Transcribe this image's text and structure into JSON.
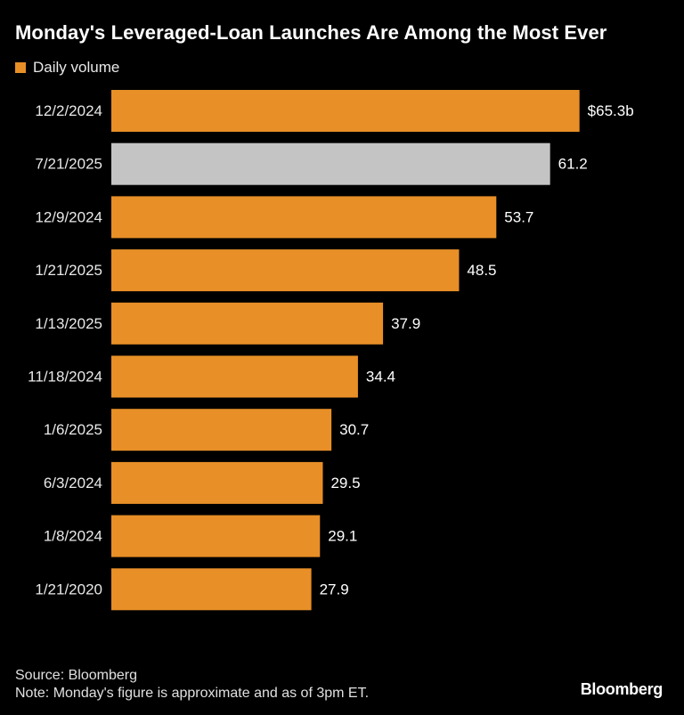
{
  "title": "Monday's Leveraged-Loan Launches Are Among the Most Ever",
  "legend": {
    "label": "Daily volume",
    "color": "#e88f27"
  },
  "chart_data": {
    "type": "bar",
    "orientation": "horizontal",
    "title": "Monday's Leveraged-Loan Launches Are Among the Most Ever",
    "categories": [
      "12/2/2024",
      "7/21/2025",
      "12/9/2024",
      "1/21/2025",
      "1/13/2025",
      "11/18/2024",
      "1/6/2025",
      "6/3/2024",
      "1/8/2024",
      "1/21/2020"
    ],
    "series": [
      {
        "name": "Daily volume",
        "values": [
          65.3,
          61.2,
          53.7,
          48.5,
          37.9,
          34.4,
          30.7,
          29.5,
          29.1,
          27.9
        ],
        "labels": [
          "$65.3b",
          "61.2",
          "53.7",
          "48.5",
          "37.9",
          "34.4",
          "30.7",
          "29.5",
          "29.1",
          "27.9"
        ]
      }
    ],
    "highlight_index": 1,
    "colors": {
      "bar": "#e88f27",
      "highlight": "#c4c4c4",
      "text": "#ffffff"
    },
    "xlim": [
      0,
      70
    ],
    "grid": false,
    "legend_position": "top-left"
  },
  "footer": {
    "source": "Source: Bloomberg",
    "note": "Note: Monday's figure is approximate and as of 3pm ET."
  },
  "brand": "Bloomberg"
}
